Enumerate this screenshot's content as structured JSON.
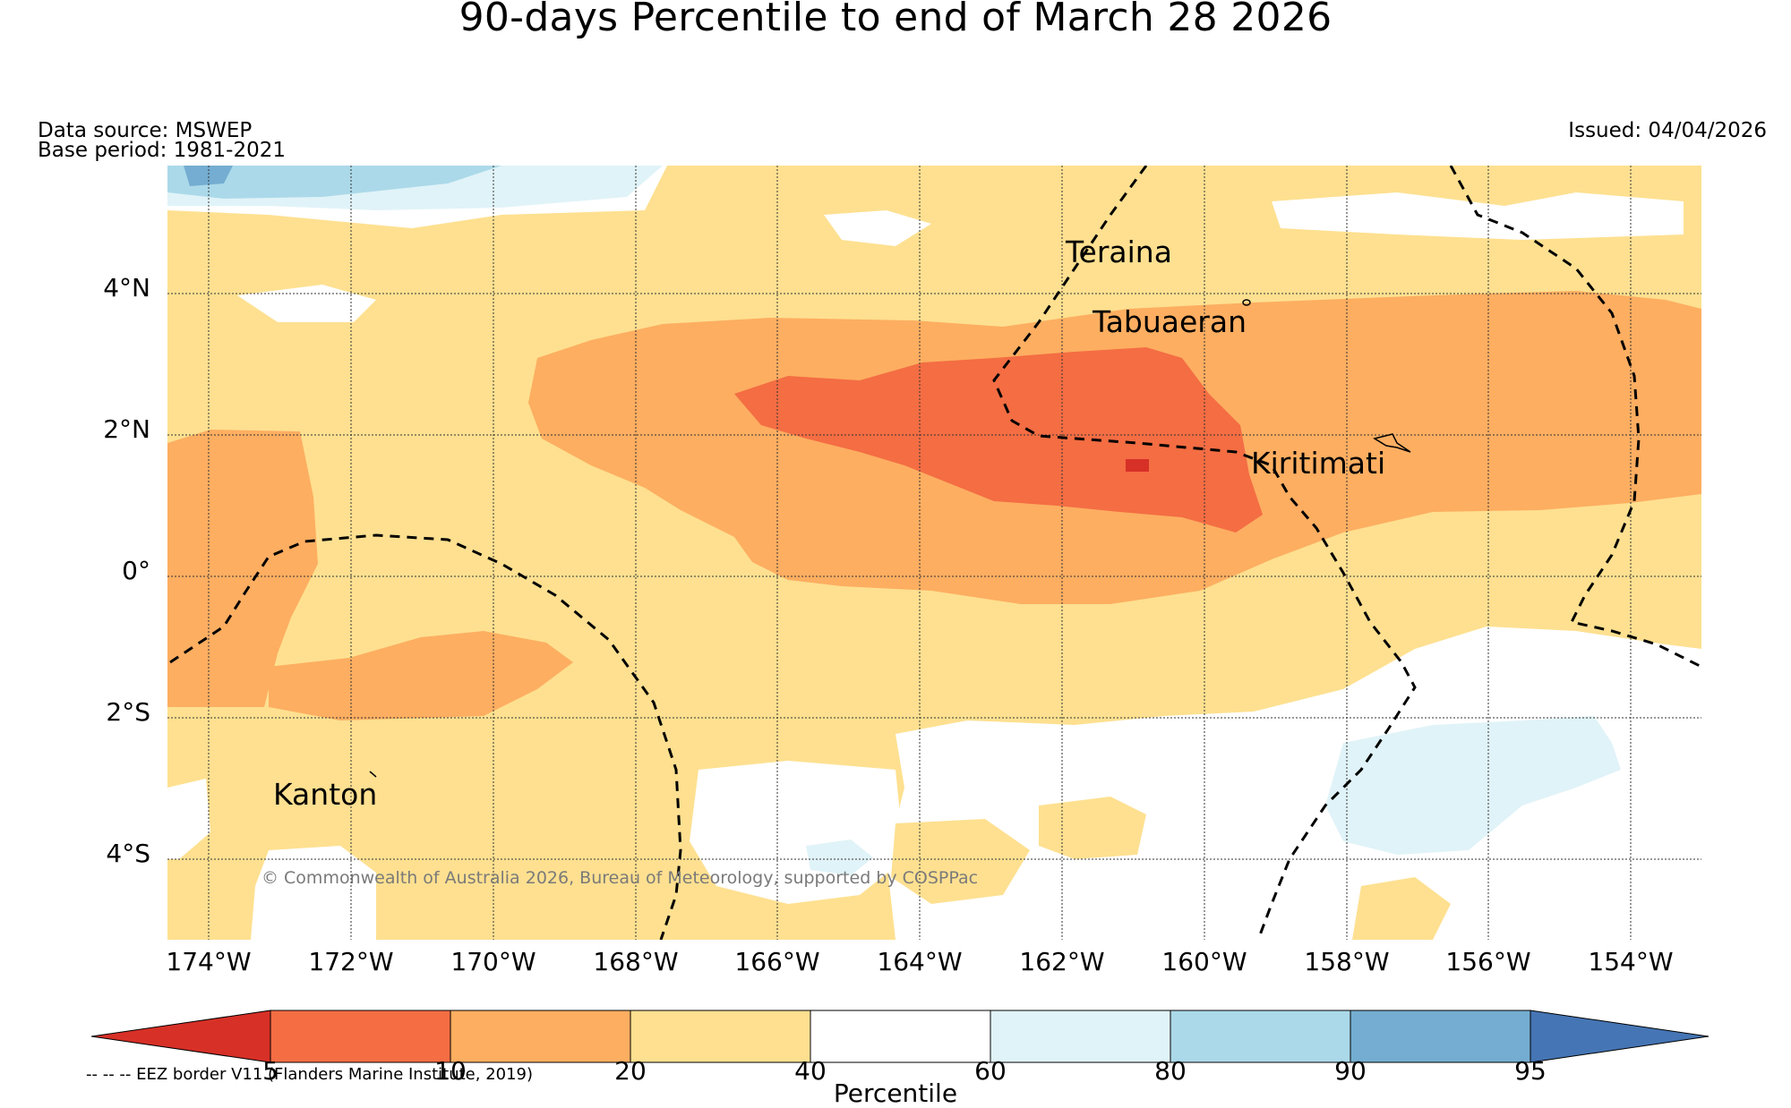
{
  "title": "90-days Percentile to end of March 28 2026",
  "data_source": "Data source: MSWEP",
  "base_period": "Base period: 1981-2021",
  "issued": "Issued: 04/04/2026",
  "copyright": "© Commonwealth of Australia 2026, Bureau of Meteorology, supported by COSPPac",
  "eez_note": "-- -- -- EEZ border V11 (Flanders Marine Institute, 2019)",
  "map": {
    "lat_labels": [
      "4°N",
      "2°N",
      "0°",
      "2°S",
      "4°S"
    ],
    "lon_labels": [
      "174°W",
      "172°W",
      "170°W",
      "168°W",
      "166°W",
      "164°W",
      "162°W",
      "160°W",
      "158°W",
      "156°W",
      "154°W"
    ],
    "places": [
      "Teraina",
      "Tabuaeran",
      "Kiritimati",
      "Kanton"
    ]
  },
  "colorbar": {
    "ticks": [
      "5",
      "10",
      "20",
      "40",
      "60",
      "80",
      "90",
      "95"
    ],
    "colors": [
      "#d73027",
      "#f46d43",
      "#fdae61",
      "#fee090",
      "#ffffff",
      "#e0f3f8",
      "#abd9e9",
      "#74add1",
      "#4575b4"
    ],
    "label": "Percentile"
  }
}
